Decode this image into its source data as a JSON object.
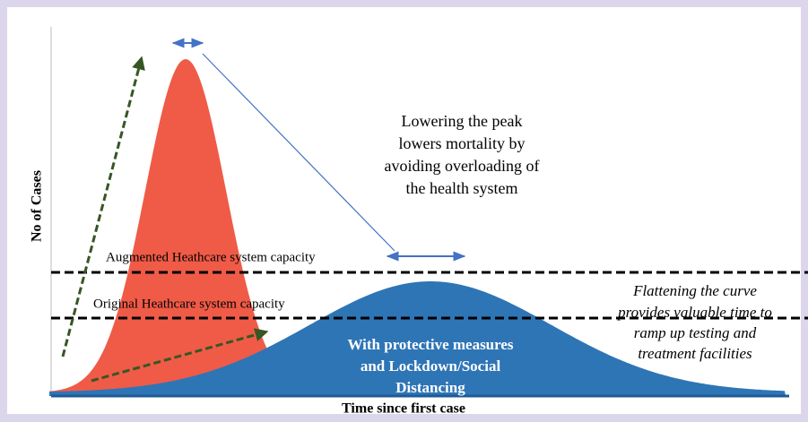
{
  "y_axis_label": "No of Cases",
  "x_axis_label": "Time since first case",
  "peak_note": {
    "lines": [
      "Lowering the peak",
      "lowers mortality by",
      "avoiding overloading of",
      "the health system"
    ]
  },
  "augmented_capacity": "Augmented Heathcare system capacity",
  "original_capacity": "Original Heathcare system capacity",
  "flatten_note": {
    "lines": [
      "Flattening the curve",
      "provides valuable time to",
      "ramp up testing and",
      "treatment facilities"
    ]
  },
  "protective_note": {
    "lines": [
      "With protective measures",
      "and Lockdown/Social",
      "Distancing"
    ]
  }
}
